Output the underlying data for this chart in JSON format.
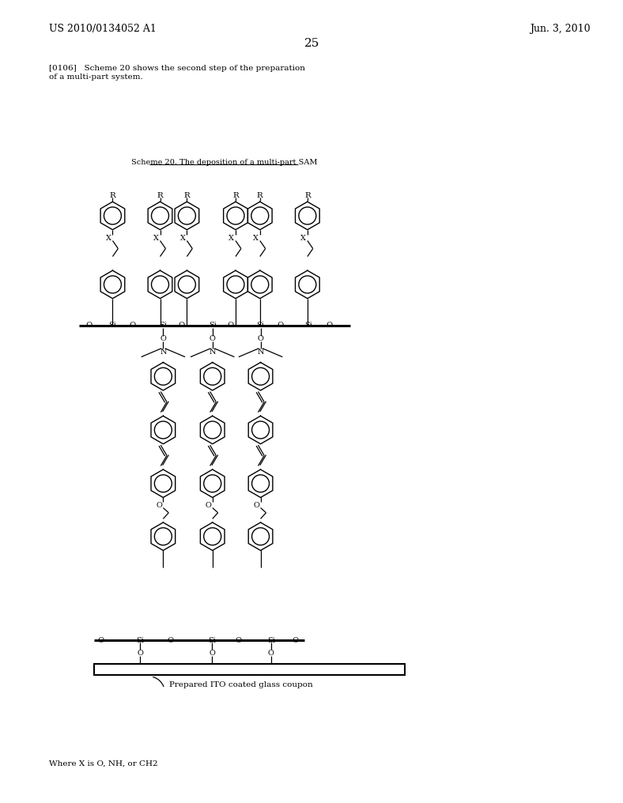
{
  "title_left": "US 2010/0134052 A1",
  "title_right": "Jun. 3, 2010",
  "page_number": "25",
  "paragraph_line1": "[0106]   Scheme 20 shows the second step of the preparation",
  "paragraph_line2": "of a multi-part system.",
  "scheme_title": "Scheme 20. The deposition of a multi-part SAM",
  "footer_label": "Prepared ITO coated glass coupon",
  "where_x": "Where X is O, NH, or CH2",
  "bg_color": "#ffffff",
  "line_color": "#000000",
  "text_color": "#000000"
}
